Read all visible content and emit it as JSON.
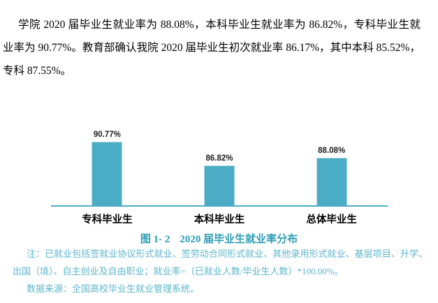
{
  "colors": {
    "bar": "#4BACC6",
    "axis": "#4BACC6",
    "caption_text": "#2E9DB5",
    "note_text": "#5BB6CC"
  },
  "paragraph": {
    "text": "学院 2020 届毕业生就业率为 88.08%，本科毕业生就业率为 86.82%，专科毕业生就业率为 90.77%。教育部确认我院 2020 届毕业生初次就业率 86.17%，其中本科 85.52%，专科 87.55%。"
  },
  "chart_data": {
    "type": "bar",
    "categories": [
      "专科毕业生",
      "本科毕业生",
      "总体毕业生"
    ],
    "values": [
      90.77,
      86.82,
      88.08
    ],
    "data_labels": [
      "90.77%",
      "86.82%",
      "88.08%"
    ],
    "title": "图 1- 2 2020 届毕业生就业率分布",
    "xlabel": "",
    "ylabel": "",
    "ylim": [
      80,
      92
    ],
    "grid": false,
    "legend": false,
    "bar_color": "#4BACC6",
    "axis_color": "#4BACC6"
  },
  "caption": {
    "label": "图 1- 2",
    "title": "2020 届毕业生就业率分布"
  },
  "notes": {
    "note": "注：已就业包括签就业协议形式就业、签劳动合同形式就业、其他录用形式就业、基层项目、升学、出国（境）、自主创业及自由职业；就业率=（已就业人数/毕业生人数）*100.00%。",
    "source": "数据来源：全国高校毕业生就业管理系统。"
  }
}
